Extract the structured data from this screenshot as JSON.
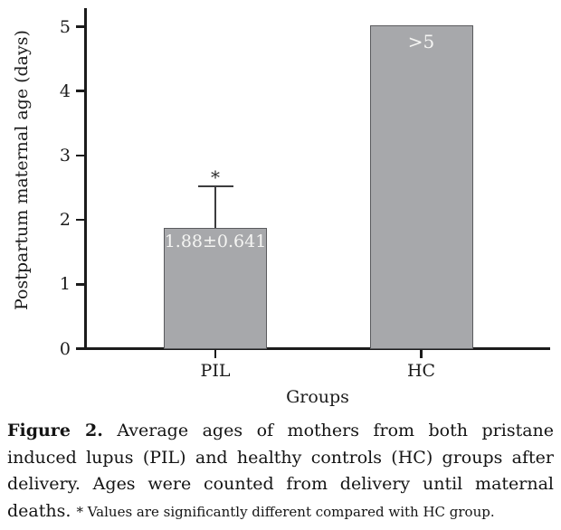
{
  "chart_data": {
    "type": "bar",
    "title": "",
    "xlabel": "Groups",
    "ylabel": "Postpartum maternal age (days)",
    "categories": [
      "PIL",
      "HC"
    ],
    "values": [
      1.88,
      5.02
    ],
    "value_labels": [
      "1.88±0.641",
      ">5"
    ],
    "errors": [
      0.641,
      null
    ],
    "annotations": [
      "*",
      ""
    ],
    "ylim": [
      0,
      5
    ],
    "yticks": [
      0,
      1,
      2,
      3,
      4,
      5
    ],
    "grid": false,
    "legend_position": "none",
    "bar_color": "#a7a8ab",
    "bar_border_color": "#5a5b5e",
    "value_label_color": "#f5f5f3",
    "axis_color": "#1b1b1b",
    "error_bar_color": "#3c3c3e"
  },
  "caption": {
    "bold_label": "Figure 2.",
    "line1_rest": "Average ages of mothers from both pristane",
    "line2": "induced lupus (PIL) and healthy controls (HC) groups after",
    "line3": "delivery. Ages were counted from delivery until maternal",
    "line4_main": "deaths.",
    "line4_note": "* Values are significantly different compared with HC group."
  }
}
